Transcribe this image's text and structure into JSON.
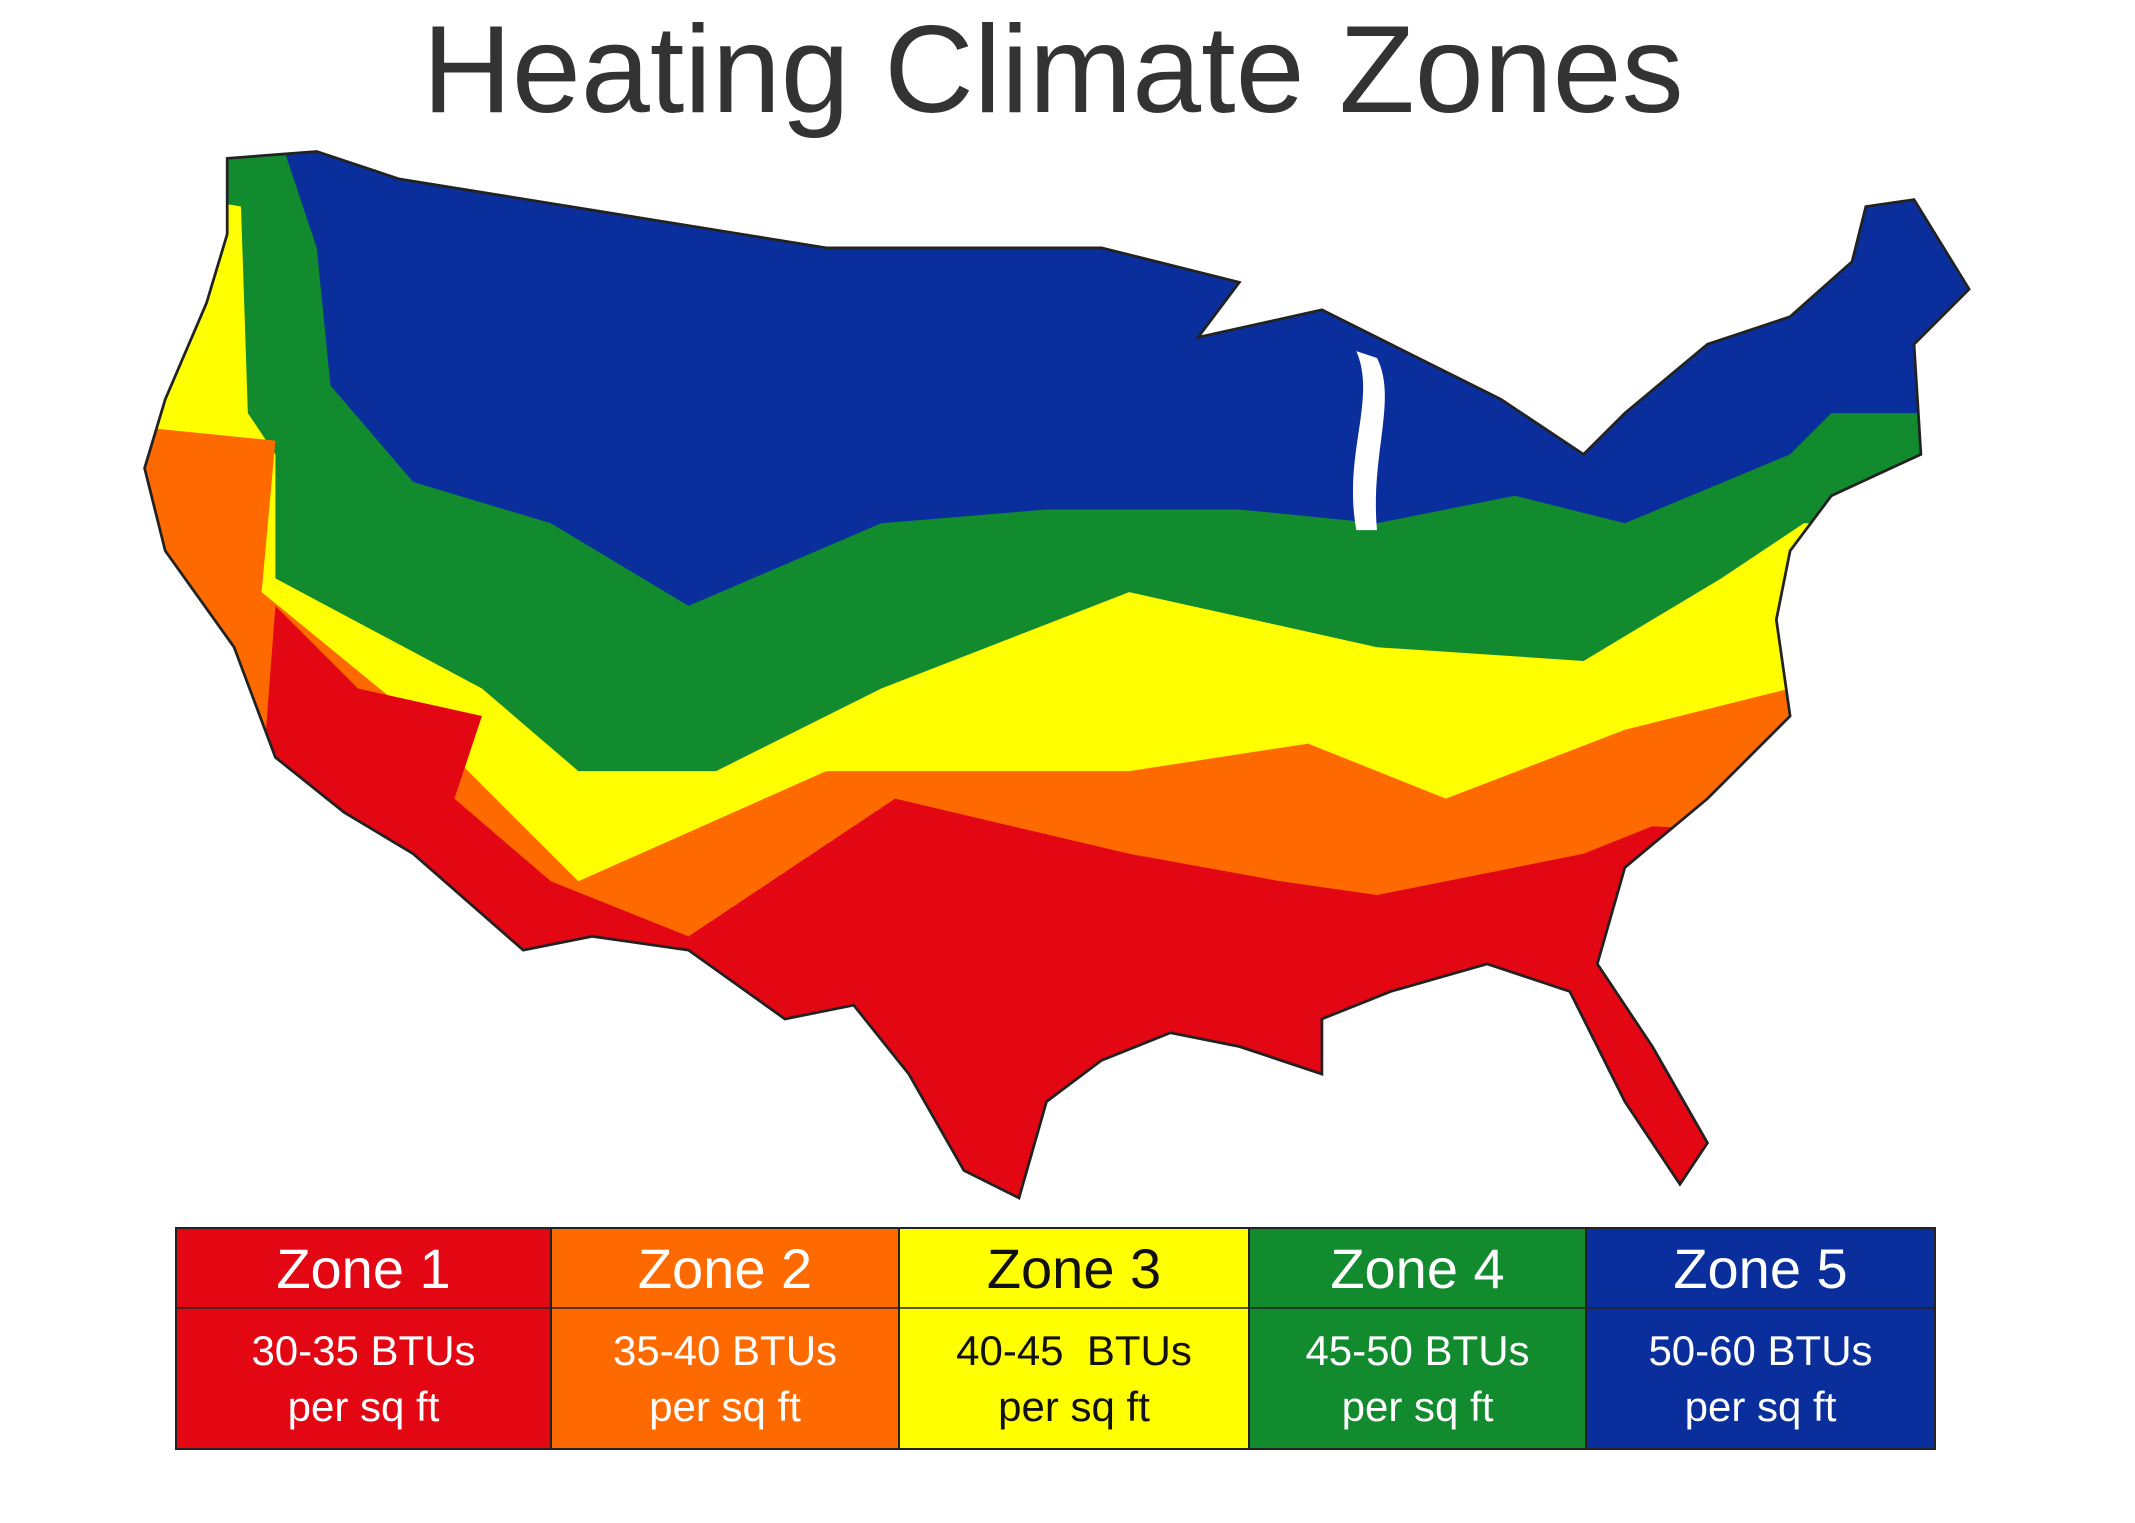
{
  "title": "Heating Climate Zones",
  "legend": [
    {
      "name": "Zone 1",
      "desc": [
        "30-35 BTUs",
        "per sq ft"
      ],
      "color": "#e30613",
      "text_color": "#ffffff"
    },
    {
      "name": "Zone 2",
      "desc": [
        "35-40 BTUs",
        "per sq ft"
      ],
      "color": "#ff6a00",
      "text_color": "#ffffff"
    },
    {
      "name": "Zone 3",
      "desc": [
        "40-45  BTUs",
        "per sq ft"
      ],
      "color": "#ffff00",
      "text_color": "#111111"
    },
    {
      "name": "Zone 4",
      "desc": [
        "45-50 BTUs",
        "per sq ft"
      ],
      "color": "#128a2e",
      "text_color": "#ffffff"
    },
    {
      "name": "Zone 5",
      "desc": [
        "50-60 BTUs",
        "per sq ft"
      ],
      "color": "#0a2f9c",
      "text_color": "#ffffff"
    }
  ]
}
